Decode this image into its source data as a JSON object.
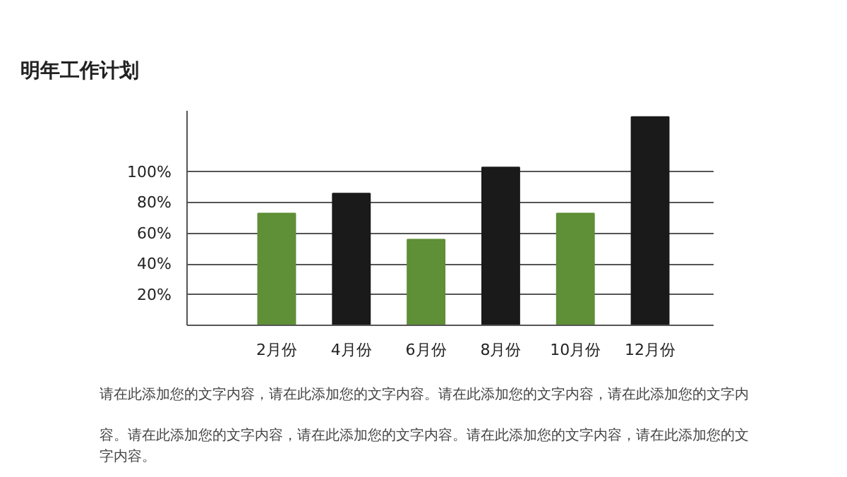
{
  "chart_data": {
    "type": "bar",
    "title": "明年工作计划",
    "categories": [
      "2月份",
      "4月份",
      "6月份",
      "8月份",
      "10月份",
      "12月份"
    ],
    "values": [
      73,
      86,
      56,
      103,
      73,
      136
    ],
    "colors": [
      "#5f8f36",
      "#1a1a1a",
      "#5f8f36",
      "#1a1a1a",
      "#5f8f36",
      "#1a1a1a"
    ],
    "ylim": [
      0,
      140
    ],
    "yticks": [
      {
        "value": 20,
        "label": "20%"
      },
      {
        "value": 40,
        "label": "40%"
      },
      {
        "value": 60,
        "label": "60%"
      },
      {
        "value": 80,
        "label": "80%"
      },
      {
        "value": 100,
        "label": "100%"
      }
    ],
    "grid": "y",
    "annotations": [
      "请在此添加您的文字内容，请在此添加您的文字内容。请在此添加您的文字内容，请在此添加您的文字内容。请在此添加您的文字内容，请在此添加您的文字内容。请在此添加您的文字内容，请在此添加您的文字内容。"
    ]
  }
}
